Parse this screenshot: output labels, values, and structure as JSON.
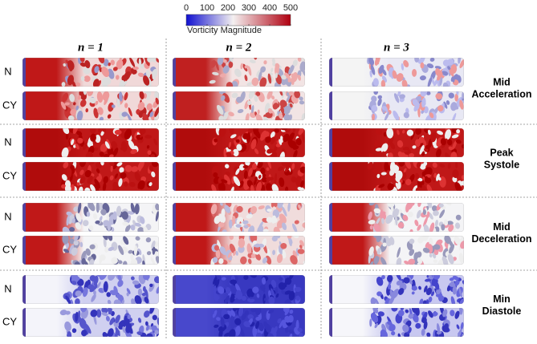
{
  "colorbar": {
    "range": [
      0,
      500
    ],
    "ticks": [
      0,
      100,
      200,
      300,
      400,
      500
    ],
    "label": "Vorticity Magnitude"
  },
  "columns": [
    "n = 1",
    "n = 2",
    "n = 3"
  ],
  "phases": [
    {
      "label": "Mid Acceleration",
      "rows": [
        "N",
        "CY"
      ]
    },
    {
      "label": "Peak Systole",
      "rows": [
        "N",
        "CY"
      ]
    },
    {
      "label": "Mid Deceleration",
      "rows": [
        "N",
        "CY"
      ]
    },
    {
      "label": "Min Diastole",
      "rows": [
        "N",
        "CY"
      ]
    }
  ]
}
